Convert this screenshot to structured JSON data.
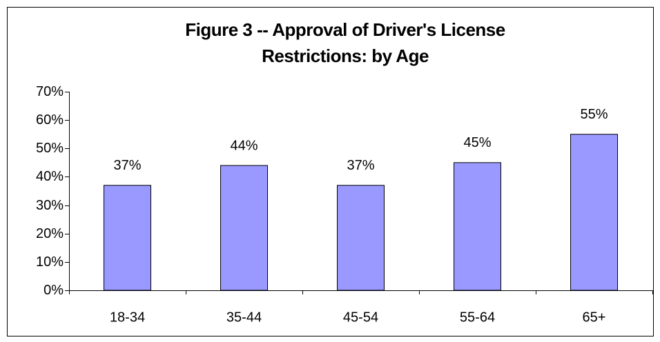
{
  "chart_data": {
    "type": "bar",
    "title": "Figure 3 -- Approval of Driver's License Restrictions: by Age",
    "categories": [
      "18-34",
      "35-44",
      "45-54",
      "55-64",
      "65+"
    ],
    "values": [
      37,
      44,
      37,
      45,
      55
    ],
    "value_labels": [
      "37%",
      "44%",
      "37%",
      "45%",
      "55%"
    ],
    "color": "#9999ff",
    "ylim": [
      0,
      70
    ],
    "yticks": [
      {
        "value": 0,
        "label": "0%"
      },
      {
        "value": 10,
        "label": "10%"
      },
      {
        "value": 20,
        "label": "20%"
      },
      {
        "value": 30,
        "label": "30%"
      },
      {
        "value": 40,
        "label": "40%"
      },
      {
        "value": 50,
        "label": "50%"
      },
      {
        "value": 60,
        "label": "60%"
      },
      {
        "value": 70,
        "label": "70%"
      }
    ],
    "grid": false
  }
}
